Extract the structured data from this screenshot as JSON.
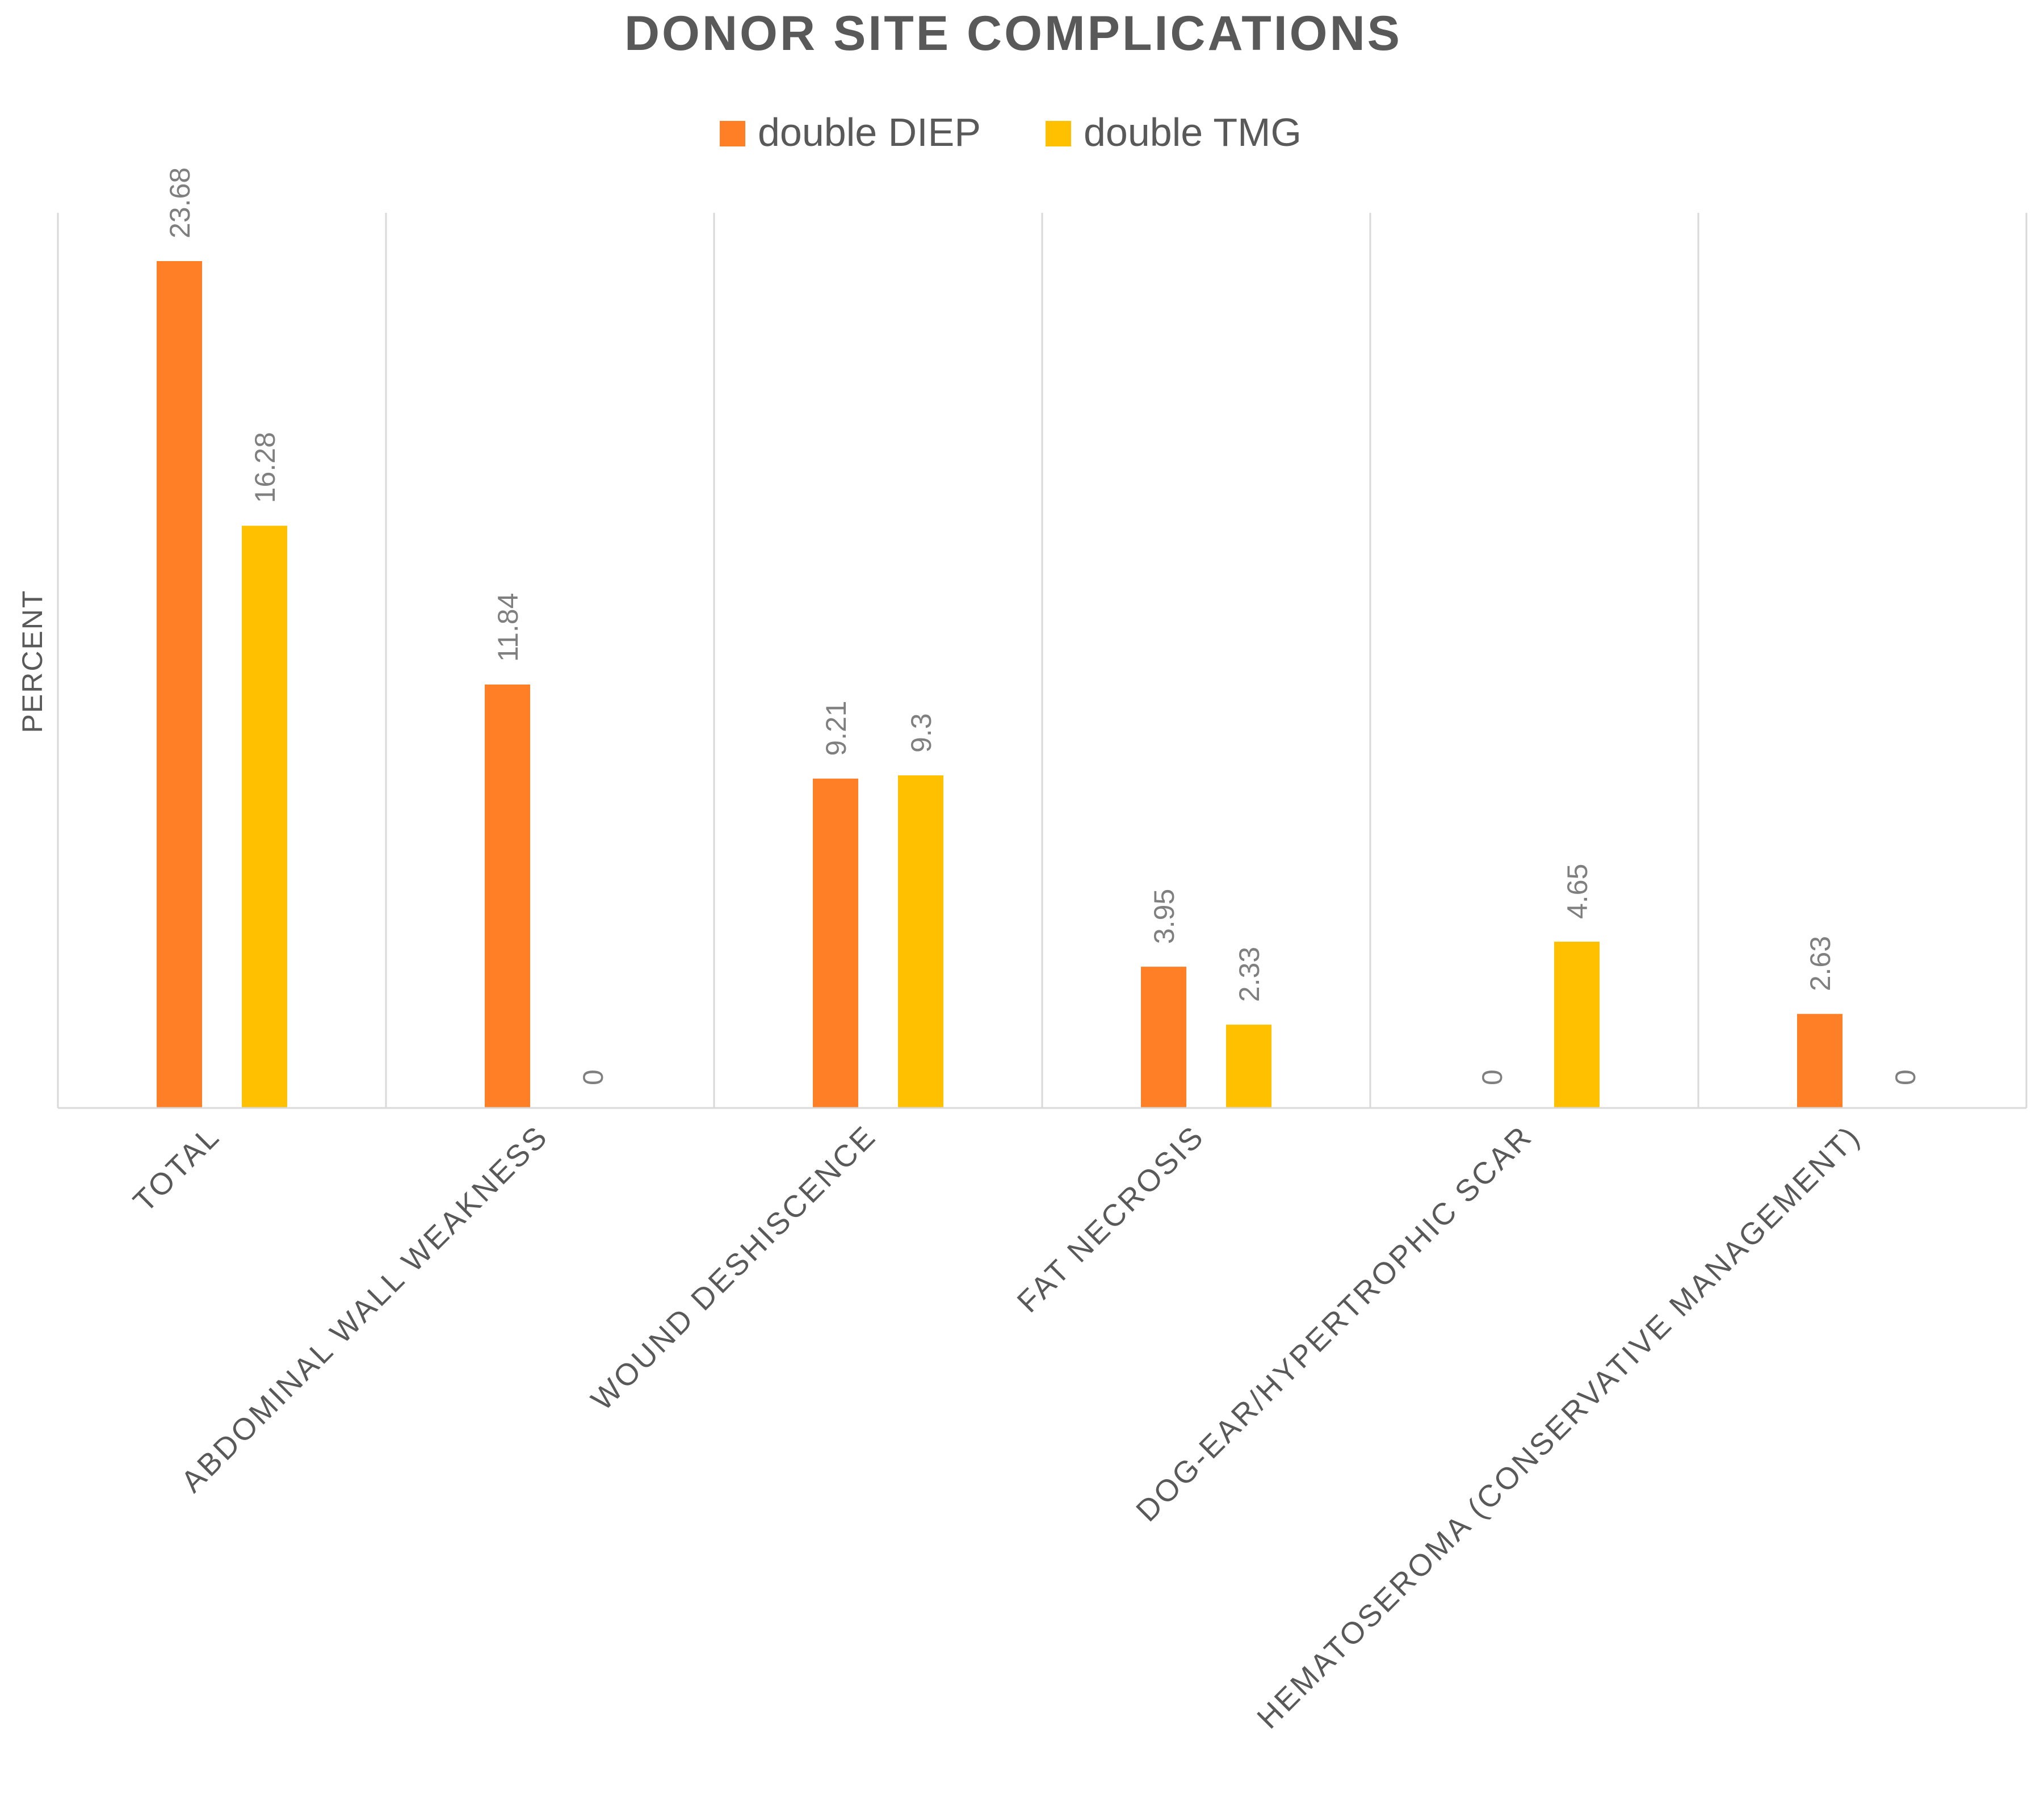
{
  "chart_data": {
    "type": "bar",
    "title": "DONOR SITE COMPLICATIONS",
    "ylabel": "PERCENT",
    "xlabel": "",
    "ylim": [
      0,
      25
    ],
    "grid": "vertical category separators",
    "legend_position": "top-center",
    "categories": [
      "TOTAL",
      "ABDOMINAL WALL WEAKNESS",
      "WOUND DESHISCENCE",
      "FAT NECROSIS",
      "DOG-EAR/HYPERTROPHIC SCAR",
      "HEMATOSEROMA (CONSERVATIVE MANAGEMENT)"
    ],
    "series": [
      {
        "name": "double DIEP",
        "color": "#FF7F26",
        "values": [
          23.68,
          11.84,
          9.21,
          3.95,
          0,
          2.63
        ]
      },
      {
        "name": "double TMG",
        "color": "#FFC000",
        "values": [
          16.28,
          0,
          9.3,
          2.33,
          4.65,
          0
        ]
      }
    ]
  }
}
